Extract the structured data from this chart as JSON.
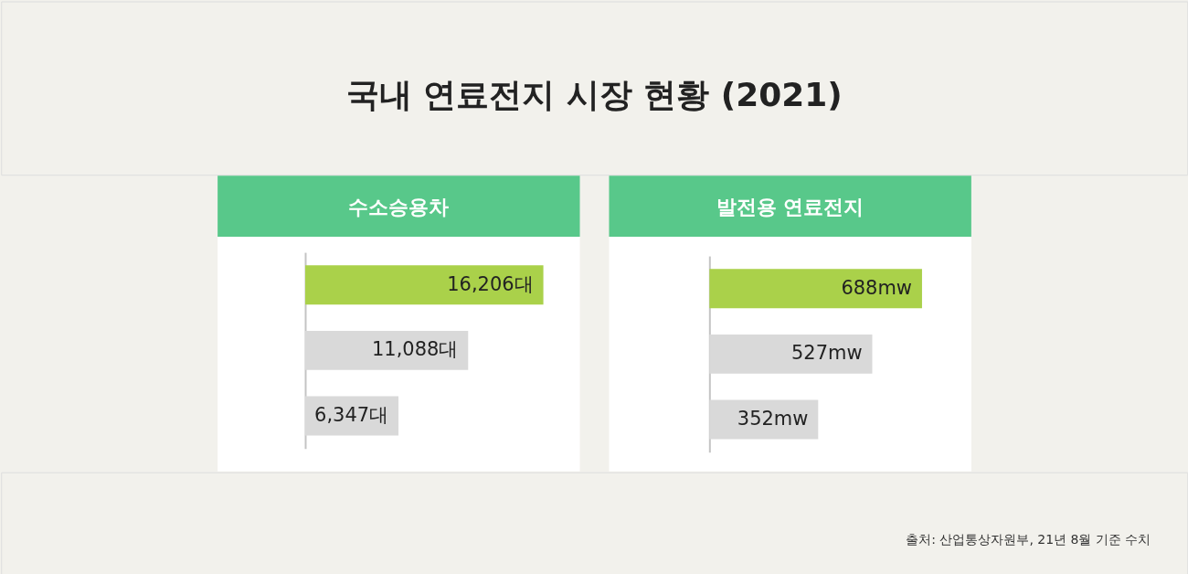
{
  "chart_data": [
    {
      "type": "other",
      "title": "국내 연료전지 시장 현황 (2021)",
      "annotations": [
        "출처: 산업통상자원부, 21년 8월 기준 수치"
      ]
    },
    {
      "type": "bar",
      "orientation": "horizontal",
      "title": "수소승용차",
      "categories": [
        null,
        null,
        null
      ],
      "values": [
        16206,
        11088,
        6347
      ],
      "colors": [
        "#aad14a",
        "#d9d9d9",
        "#d9d9d9"
      ],
      "value_labels": [
        "16,206대",
        "11,088대",
        "6,347대"
      ]
    },
    {
      "type": "bar",
      "orientation": "horizontal",
      "title": "발전용 연료전지",
      "categories": [
        null,
        null,
        null
      ],
      "values": [
        688,
        527,
        352
      ],
      "colors": [
        "#aad14a",
        "#d9d9d9",
        "#d9d9d9"
      ],
      "value_labels": [
        "688mw",
        "527mw",
        "352mw"
      ]
    }
  ]
}
